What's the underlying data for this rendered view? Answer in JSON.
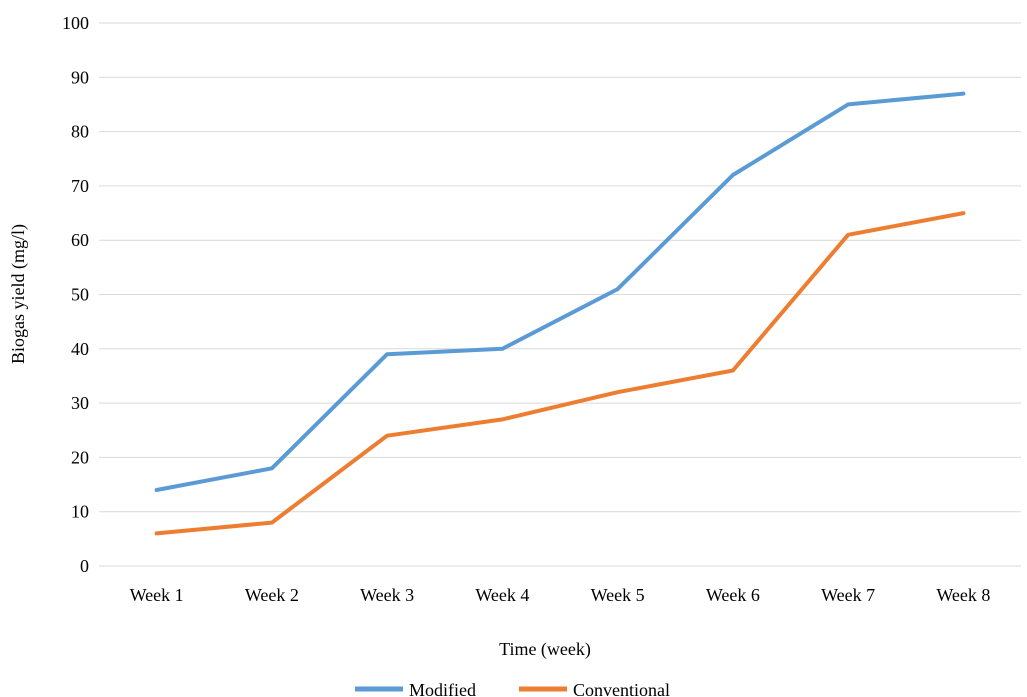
{
  "chart_data": {
    "type": "line",
    "title": "",
    "xlabel": "Time (week)",
    "ylabel": "Biogas yield (mg/l)",
    "ylim": [
      0,
      100
    ],
    "yticks": [
      0,
      10,
      20,
      30,
      40,
      50,
      60,
      70,
      80,
      90,
      100
    ],
    "grid": true,
    "legend_position": "bottom",
    "categories": [
      "Week 1",
      "Week 2",
      "Week 3",
      "Week 4",
      "Week 5",
      "Week 6",
      "Week 7",
      "Week 8"
    ],
    "series": [
      {
        "name": "Modified",
        "color": "#5b9bd5",
        "values": [
          14,
          18,
          39,
          40,
          51,
          72,
          85,
          87
        ]
      },
      {
        "name": "Conventional",
        "color": "#ed7d31",
        "values": [
          6,
          8,
          24,
          27,
          32,
          36,
          61,
          65
        ]
      }
    ]
  }
}
